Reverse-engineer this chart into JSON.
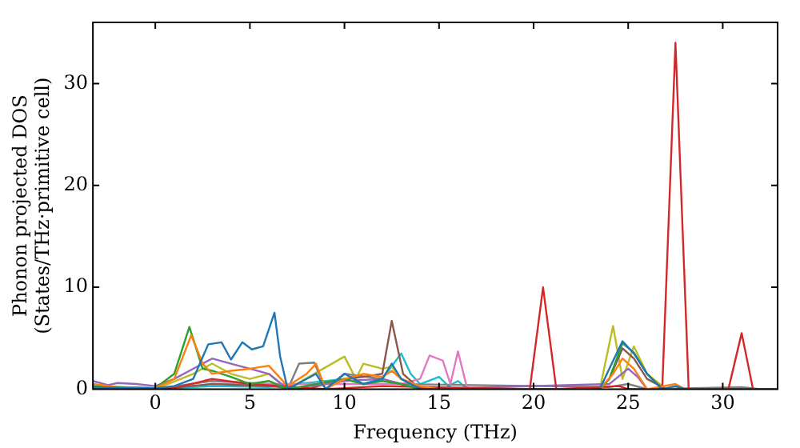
{
  "chart_data": {
    "type": "line",
    "xlabel": "Frequency (THz)",
    "ylabel": "Phonon projected DOS\n(States/THz·primitive cell)",
    "xlim": [
      -3.3,
      32.9
    ],
    "ylim": [
      0,
      36
    ],
    "xticks": [
      0,
      5,
      10,
      15,
      20,
      25,
      30
    ],
    "yticks": [
      0,
      10,
      20,
      30
    ],
    "grid": false,
    "legend": false,
    "marker": "none",
    "line_style": "solid",
    "series": [
      {
        "color": "#1f77b4",
        "x": [
          -3.3,
          0,
          1,
          2,
          2.8,
          3.5,
          4,
          4.6,
          5.1,
          5.7,
          6.3,
          6.6,
          7,
          8.5,
          9,
          10,
          11,
          12,
          12.5,
          13,
          14,
          23.5,
          24,
          24.7,
          25.3,
          26,
          26.8,
          27.5,
          28,
          32.9
        ],
        "values": [
          0.2,
          0.1,
          0.3,
          1,
          4.4,
          4.6,
          2.9,
          4.6,
          3.9,
          4.2,
          7.5,
          3.2,
          0,
          1.5,
          0,
          1.5,
          0.5,
          1,
          2.5,
          1,
          0,
          0,
          2,
          4.7,
          3.5,
          1.5,
          0,
          0.3,
          0,
          0
        ]
      },
      {
        "color": "#ff7f0e",
        "x": [
          -3.3,
          -2,
          0,
          1,
          1.9,
          2.5,
          3,
          4,
          5,
          6,
          7,
          8,
          8.5,
          9,
          10,
          11,
          12,
          12.5,
          13,
          14,
          15,
          23.5,
          24.2,
          24.7,
          25.3,
          26,
          27.5,
          28,
          32.9
        ],
        "values": [
          0.5,
          0.2,
          0.1,
          1,
          5.3,
          2.5,
          1.5,
          1.8,
          2,
          2.3,
          0.3,
          1.5,
          2.5,
          0,
          1,
          1.5,
          1.2,
          1.8,
          1,
          0.3,
          0,
          0,
          1.5,
          3,
          2,
          0,
          0.5,
          0,
          0
        ]
      },
      {
        "color": "#2ca02c",
        "x": [
          -3.3,
          0,
          1,
          1.8,
          2.5,
          3,
          4,
          5,
          6,
          7,
          10,
          11,
          12,
          13,
          14,
          23.5,
          24,
          24.7,
          25.3,
          26,
          26.8,
          32.9
        ],
        "values": [
          0.3,
          0.1,
          1.5,
          6.1,
          2,
          1.8,
          1.2,
          0.5,
          0.8,
          0,
          1,
          0.5,
          0.8,
          0.5,
          0,
          0,
          1,
          4.5,
          3.6,
          1.5,
          0,
          0
        ]
      },
      {
        "color": "#d62728",
        "x": [
          -3.3,
          1,
          3,
          5,
          9,
          12,
          19.8,
          20.5,
          21.2,
          24.5,
          25,
          26.8,
          27.5,
          28.2,
          30.3,
          31,
          31.6,
          32.9
        ],
        "values": [
          0.1,
          0.1,
          1,
          0.5,
          0,
          0.3,
          0,
          10,
          0,
          0.3,
          0,
          0,
          34,
          0,
          0,
          5.5,
          0,
          0
        ]
      },
      {
        "color": "#9467bd",
        "x": [
          -3.3,
          -2.5,
          -2,
          -1,
          0,
          1,
          2,
          3,
          4,
          5,
          6,
          7,
          10,
          12,
          14,
          24,
          25,
          25.5,
          26,
          32.9
        ],
        "values": [
          0.8,
          0.4,
          0.6,
          0.5,
          0.3,
          1,
          2,
          3,
          2.5,
          2,
          1.5,
          0,
          0.8,
          1,
          0,
          0.5,
          2,
          1.2,
          0,
          0
        ]
      },
      {
        "color": "#8c564b",
        "x": [
          0,
          3,
          6,
          8,
          10,
          11,
          12,
          12.5,
          13.1,
          14,
          23.5,
          24,
          24.7,
          25.3,
          26,
          27,
          32.9
        ],
        "values": [
          0,
          0.5,
          0.3,
          0,
          1,
          1.2,
          1.5,
          6.7,
          1.5,
          0,
          0,
          1,
          4,
          3,
          1,
          0,
          0
        ]
      },
      {
        "color": "#e377c2",
        "x": [
          3,
          6,
          10,
          13,
          14,
          14.5,
          15.2,
          15.6,
          16,
          16.5,
          17
        ],
        "values": [
          0.5,
          0.5,
          0.5,
          0.5,
          1,
          3.3,
          2.8,
          0.5,
          3.7,
          0,
          0
        ]
      },
      {
        "color": "#7f7f7f",
        "x": [
          -3.3,
          0,
          3,
          6,
          7,
          7.6,
          8.4,
          9,
          10,
          12,
          13,
          24,
          25,
          26,
          31,
          32,
          32.9
        ],
        "values": [
          0.3,
          0,
          0.8,
          0.5,
          0,
          2.5,
          2.6,
          0,
          1.5,
          1,
          0.5,
          0.2,
          0.5,
          0,
          0.2,
          0,
          0
        ]
      },
      {
        "color": "#bcbd22",
        "x": [
          0,
          2,
          3,
          4,
          5,
          6,
          7,
          10,
          10.6,
          11,
          12,
          12.5,
          13,
          14,
          23.5,
          24.2,
          24.7,
          25.3,
          26,
          27,
          32.9
        ],
        "values": [
          0,
          1.5,
          2.5,
          1.5,
          1,
          1.5,
          0,
          3.2,
          1,
          2.5,
          2,
          2.2,
          1,
          0,
          0,
          6.2,
          1,
          4.2,
          1.5,
          0,
          0
        ]
      },
      {
        "color": "#17becf",
        "x": [
          0,
          3,
          6,
          10,
          11,
          12,
          13,
          13.5,
          14,
          15,
          15.5,
          16,
          16.5,
          17
        ],
        "values": [
          0,
          0.3,
          0.2,
          1,
          0.5,
          1,
          3.5,
          1.5,
          0.5,
          1.2,
          0.3,
          0.8,
          0,
          0
        ]
      }
    ]
  }
}
